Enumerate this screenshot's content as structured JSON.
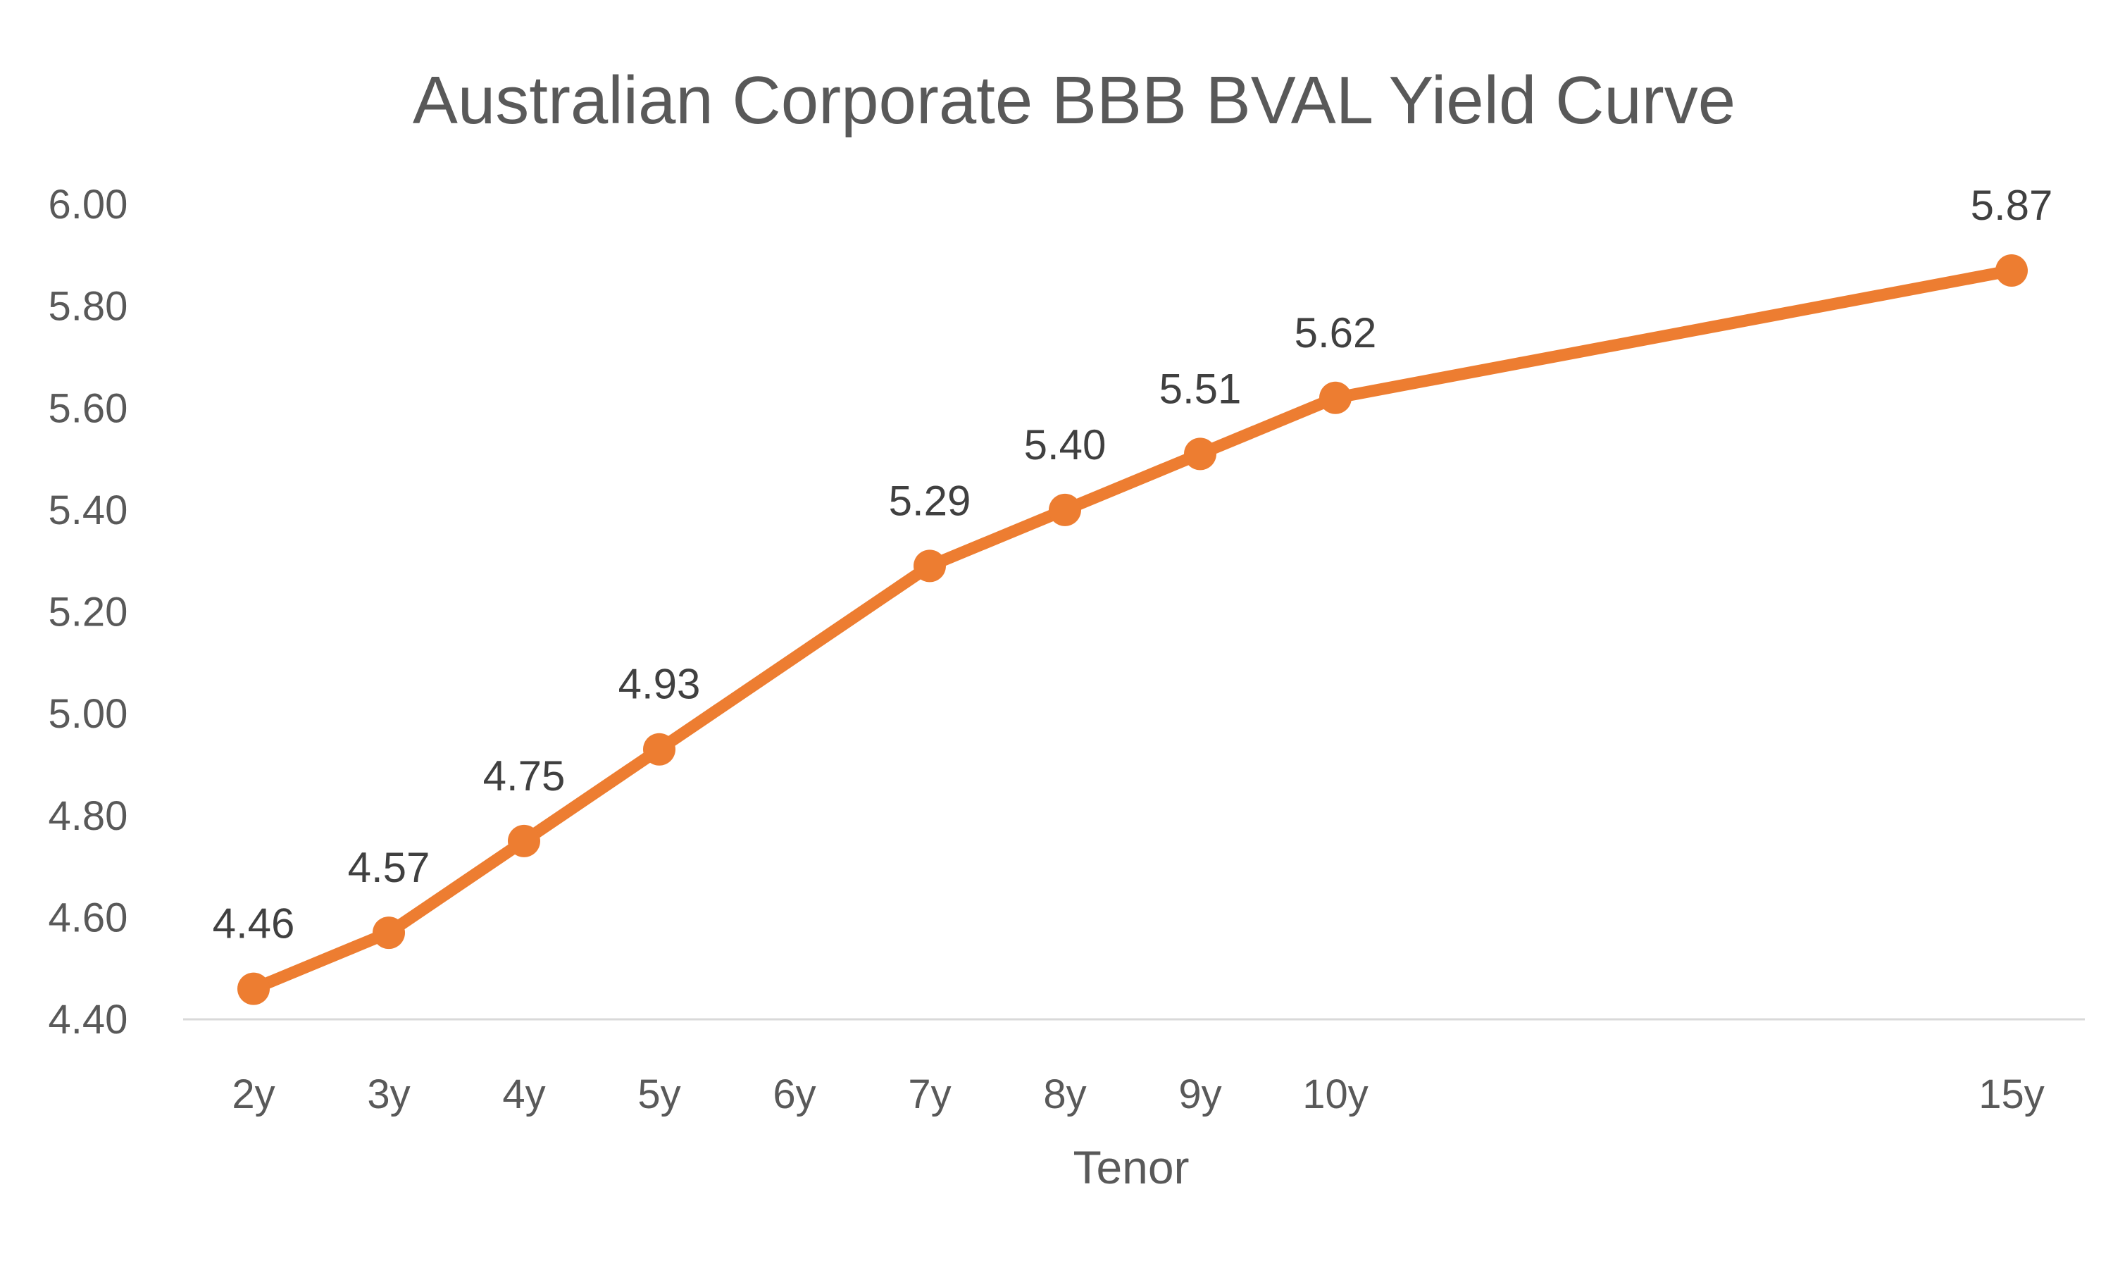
{
  "colors": {
    "series": "#ED7D31",
    "text": "#595959",
    "axis_line": "#D9D9D9",
    "label": "#404040",
    "background": "#FFFFFF"
  },
  "chart_data": {
    "type": "line",
    "title": "Australian Corporate BBB BVAL Yield Curve",
    "xlabel": "Tenor",
    "ylabel": "",
    "categories": [
      "2y",
      "3y",
      "4y",
      "5y",
      "6y",
      "7y",
      "8y",
      "9y",
      "10y",
      "15y"
    ],
    "x_years": [
      2,
      3,
      4,
      5,
      6,
      7,
      8,
      9,
      10,
      15
    ],
    "ylim": [
      4.4,
      6.0
    ],
    "yticks": [
      "4.40",
      "4.60",
      "4.80",
      "5.00",
      "5.20",
      "5.40",
      "5.60",
      "5.80",
      "6.00"
    ],
    "grid": false,
    "legend": "none",
    "series": [
      {
        "points": [
          {
            "x": "2y",
            "y": 4.46,
            "label": "4.46"
          },
          {
            "x": "3y",
            "y": 4.57,
            "label": "4.57"
          },
          {
            "x": "4y",
            "y": 4.75,
            "label": "4.75"
          },
          {
            "x": "5y",
            "y": 4.93,
            "label": "4.93"
          },
          {
            "x": "7y",
            "y": 5.29,
            "label": "5.29"
          },
          {
            "x": "8y",
            "y": 5.4,
            "label": "5.40"
          },
          {
            "x": "9y",
            "y": 5.51,
            "label": "5.51"
          },
          {
            "x": "10y",
            "y": 5.62,
            "label": "5.62"
          },
          {
            "x": "15y",
            "y": 5.87,
            "label": "5.87"
          }
        ]
      }
    ]
  }
}
